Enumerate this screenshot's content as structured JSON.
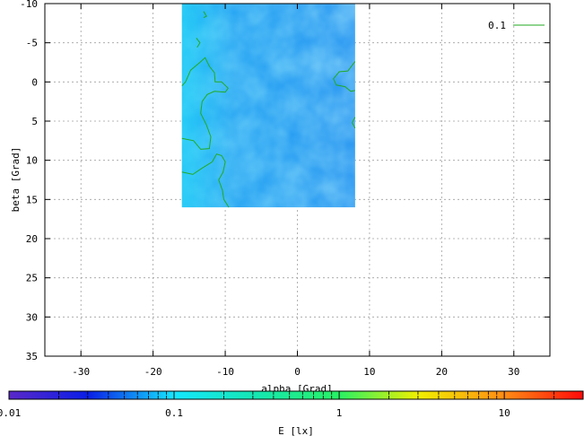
{
  "chart_data": {
    "type": "heatmap",
    "xlabel": "alpha [Grad]",
    "ylabel": "beta [Grad]",
    "xlim": [
      -35,
      35
    ],
    "ylim": [
      -10,
      35
    ],
    "y_axis_inverted": true,
    "grid": true,
    "x_ticks": [
      -30,
      -20,
      -10,
      0,
      10,
      20,
      30
    ],
    "y_ticks": [
      -10,
      -5,
      0,
      5,
      10,
      15,
      20,
      25,
      30,
      35
    ],
    "x_tick_labels": [
      "-30",
      "-20",
      "-10",
      "0",
      "10",
      "20",
      "30"
    ],
    "y_tick_labels": [
      "-10",
      "-5",
      "0",
      "5",
      "10",
      "15",
      "20",
      "25",
      "30",
      "35"
    ],
    "data_extent": {
      "x": [
        -16,
        8
      ],
      "y": [
        -10,
        16
      ]
    },
    "legend": {
      "position": "top-right",
      "entries": [
        {
          "label": "0.1",
          "color": "#22aa22"
        }
      ]
    },
    "contour_level": 0.1,
    "contour_color": "#22aa22",
    "colorbar": {
      "label": "E [lx]",
      "scale": "log",
      "range": [
        0.01,
        30
      ],
      "ticks": [
        0.01,
        0.1,
        1,
        10
      ],
      "tick_labels": [
        "0.01",
        "0.1",
        "1",
        "10"
      ],
      "stops": [
        {
          "value": 0.01,
          "color": "#5a28c8"
        },
        {
          "value": 0.03,
          "color": "#0a1ee6"
        },
        {
          "value": 0.1,
          "color": "#14e6ff"
        },
        {
          "value": 0.3,
          "color": "#14e6b4"
        },
        {
          "value": 1,
          "color": "#28f064"
        },
        {
          "value": 3,
          "color": "#f0f000"
        },
        {
          "value": 10,
          "color": "#ff8c14"
        },
        {
          "value": 30,
          "color": "#ff0a0a"
        }
      ]
    }
  }
}
